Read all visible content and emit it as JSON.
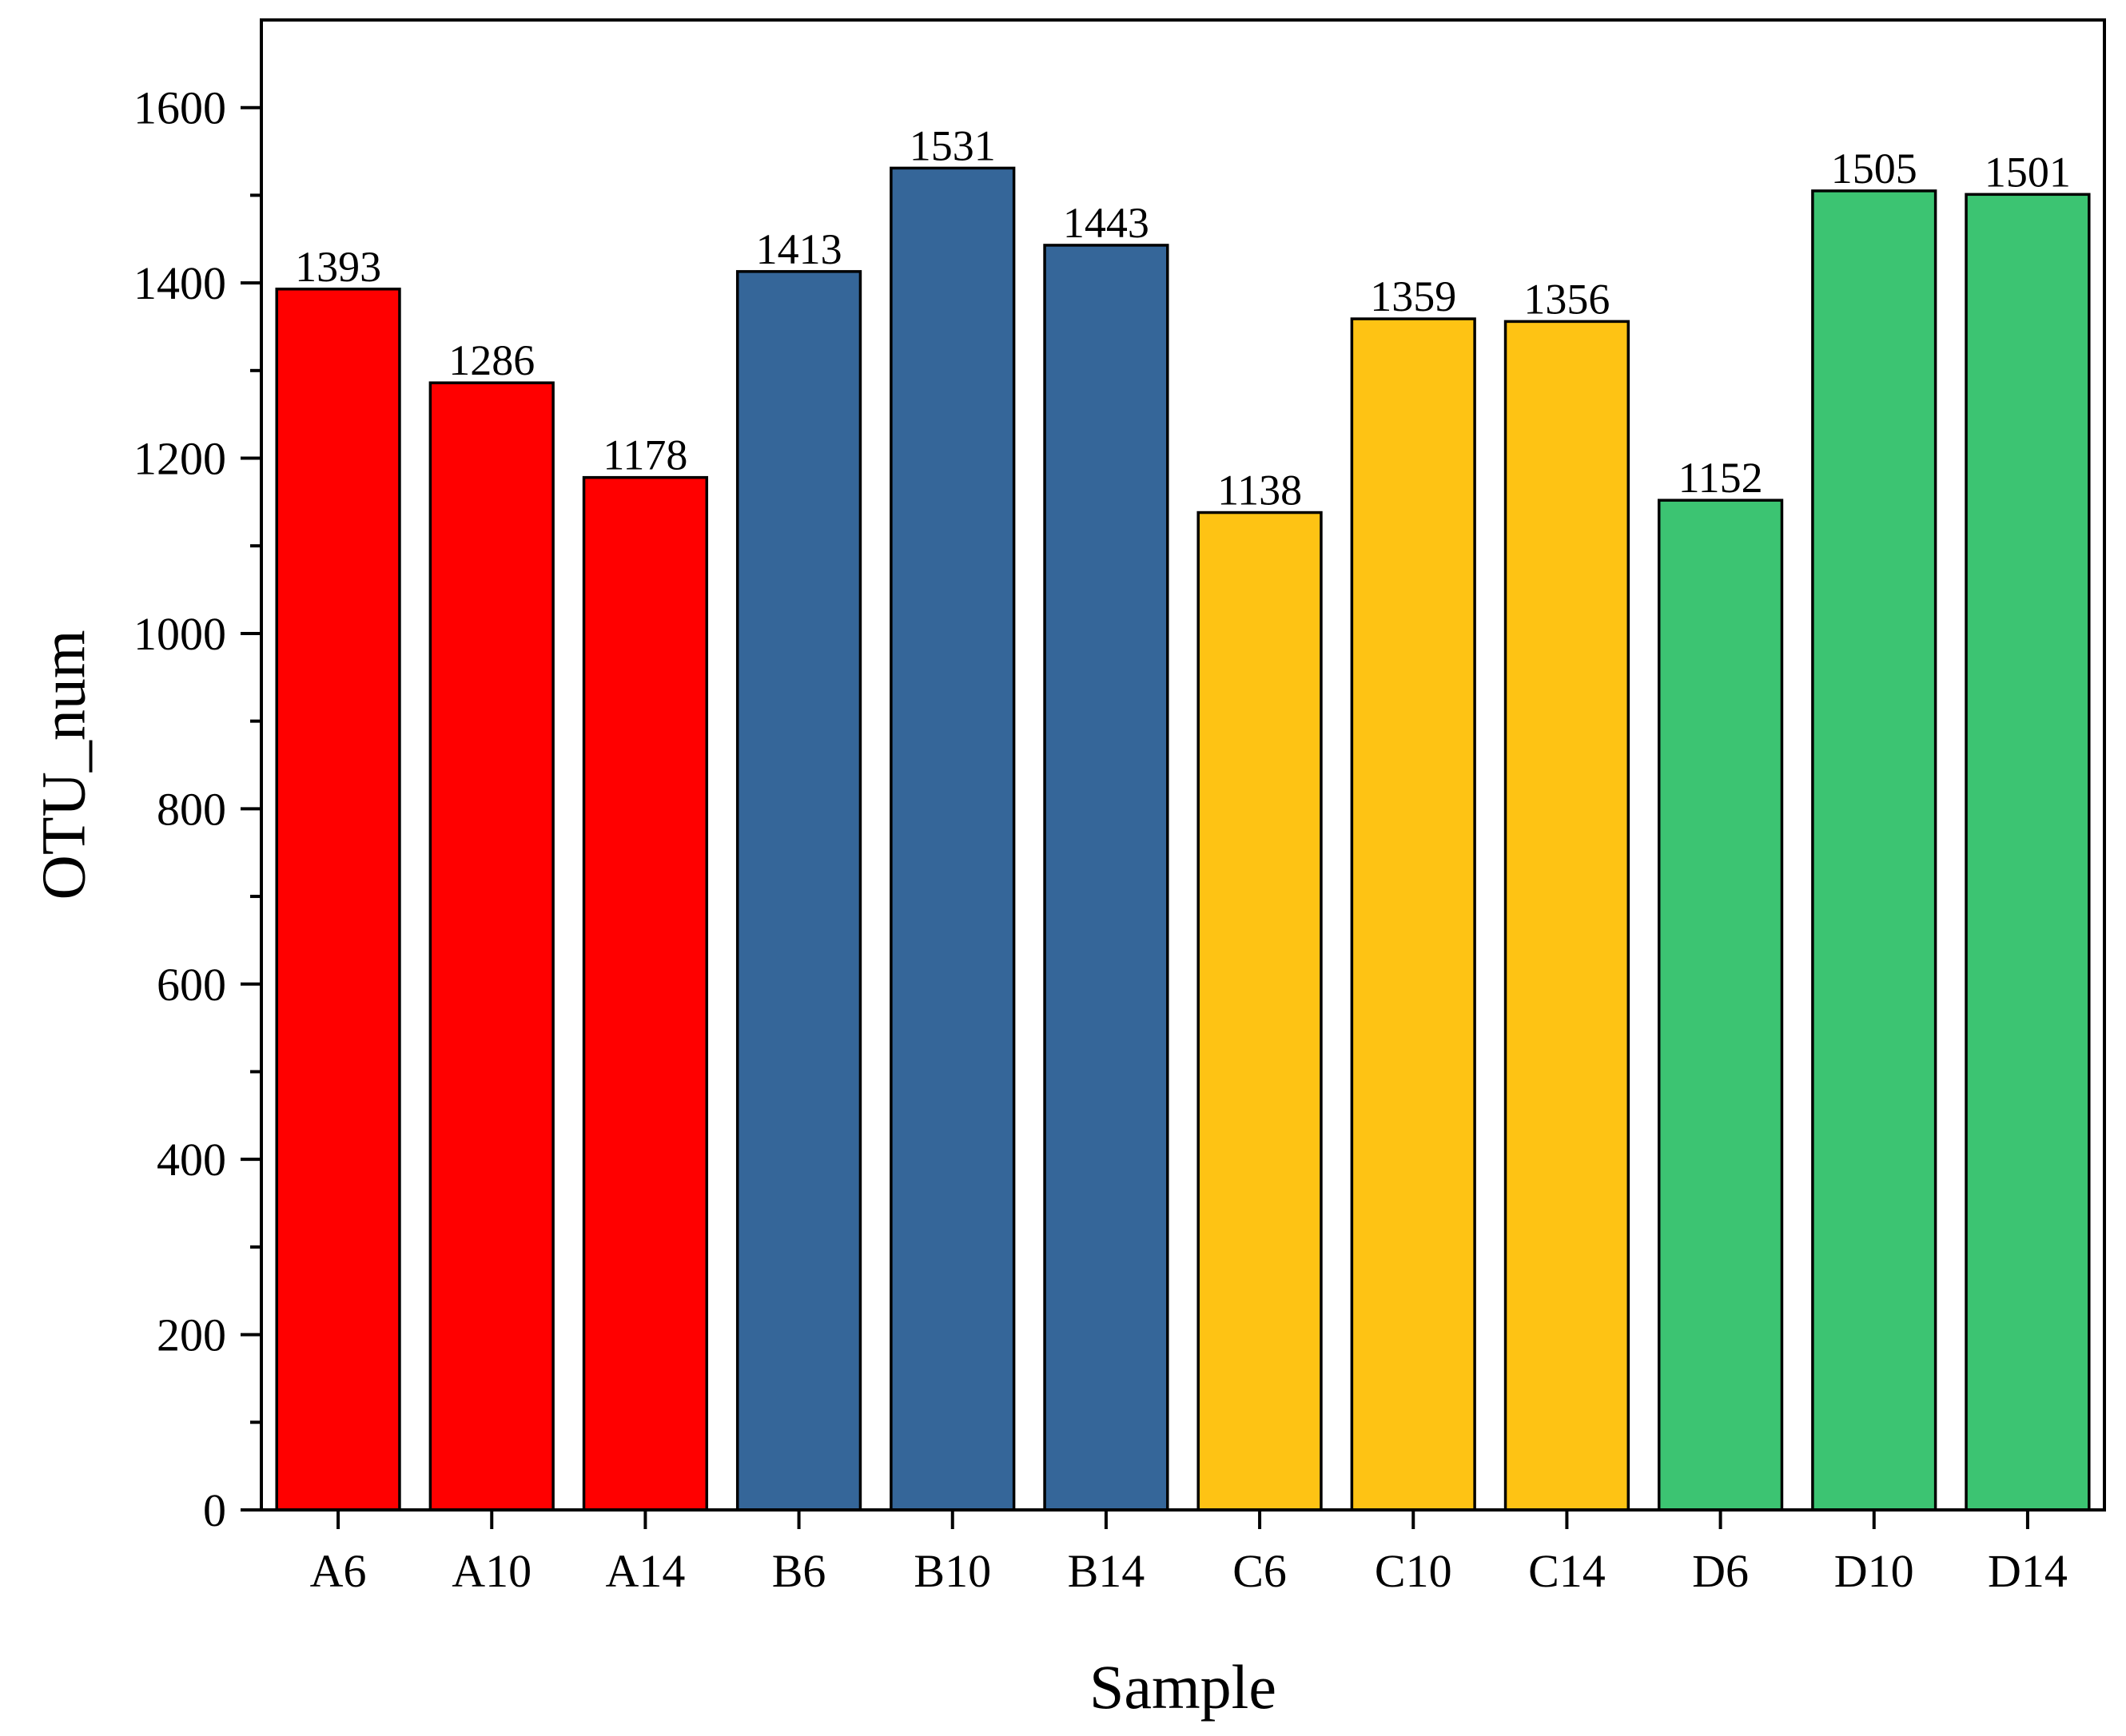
{
  "chart_data": {
    "type": "bar",
    "title": "",
    "xlabel": "Sample",
    "ylabel": "OTU_num",
    "categories": [
      "A6",
      "A10",
      "A14",
      "B6",
      "B10",
      "B14",
      "C6",
      "C10",
      "C14",
      "D6",
      "D10",
      "D14"
    ],
    "values": [
      1393,
      1286,
      1178,
      1413,
      1531,
      1443,
      1138,
      1359,
      1356,
      1152,
      1505,
      1501
    ],
    "bar_colors": [
      "#ff0000",
      "#ff0000",
      "#ff0000",
      "#356699",
      "#356699",
      "#356699",
      "#fec314",
      "#fec314",
      "#fec314",
      "#3cc472",
      "#3cc472",
      "#3cc472"
    ],
    "ylim": [
      0,
      1700
    ],
    "yticks": [
      0,
      200,
      400,
      600,
      800,
      1000,
      1200,
      1400,
      1600
    ],
    "minor_ytick_step": 100,
    "grid": false,
    "legend": "none",
    "data_labels": true
  }
}
